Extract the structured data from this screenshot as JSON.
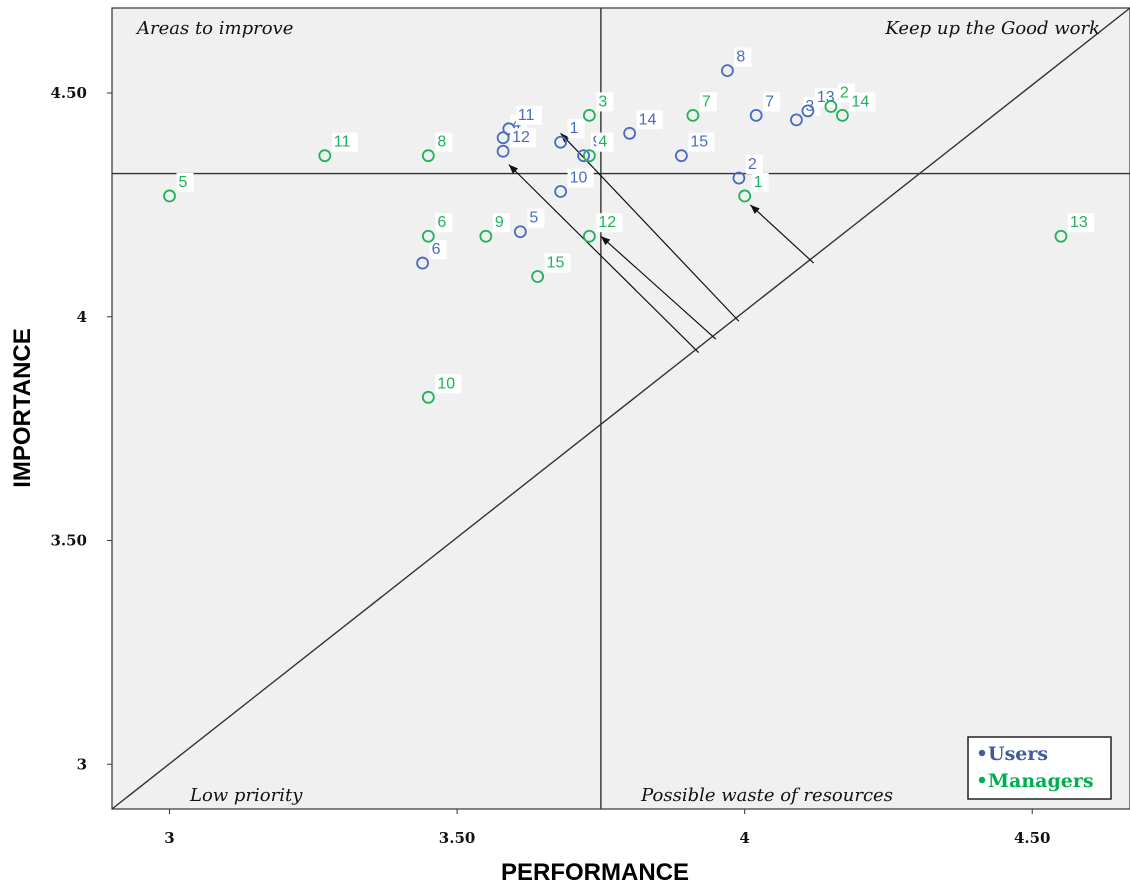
{
  "chart_data": {
    "type": "scatter",
    "title": "",
    "xlabel": "PERFORMANCE",
    "ylabel": "IMPORTANCE",
    "xlim": [
      2.9,
      4.67
    ],
    "ylim": [
      2.9,
      4.69
    ],
    "x_ticks": [
      {
        "value": 3,
        "label": "3"
      },
      {
        "value": 3.5,
        "label": "3.50"
      },
      {
        "value": 4,
        "label": "4"
      },
      {
        "value": 4.5,
        "label": "4.50"
      }
    ],
    "y_ticks": [
      {
        "value": 3,
        "label": "3"
      },
      {
        "value": 3.5,
        "label": "3.50"
      },
      {
        "value": 4,
        "label": "4"
      },
      {
        "value": 4.5,
        "label": "4.50"
      }
    ],
    "grid": false,
    "mean_lines": {
      "x": 3.75,
      "y": 4.32
    },
    "diagonal": {
      "from": [
        2.9,
        2.9
      ],
      "to": [
        4.67,
        4.69
      ]
    },
    "quadrant_labels": [
      {
        "text": "Areas to improve",
        "position": "top-left"
      },
      {
        "text": "Keep up the Good work",
        "position": "top-right"
      },
      {
        "text": "Low priority",
        "position": "bottom-left"
      },
      {
        "text": "Possible waste of resources",
        "position": "bottom-right"
      }
    ],
    "legend": {
      "position": "bottom-right",
      "entries": [
        {
          "label": "Users",
          "color": "#3f5c9c"
        },
        {
          "label": "Managers",
          "color": "#00b050"
        }
      ]
    },
    "series": [
      {
        "name": "Users",
        "color": "#4a6cc0",
        "points": [
          {
            "id": "1",
            "x": 3.68,
            "y": 4.39
          },
          {
            "id": "2",
            "x": 3.99,
            "y": 4.31
          },
          {
            "id": "3",
            "x": 4.09,
            "y": 4.44
          },
          {
            "id": "4",
            "x": 3.58,
            "y": 4.4
          },
          {
            "id": "5",
            "x": 3.61,
            "y": 4.19
          },
          {
            "id": "6",
            "x": 3.44,
            "y": 4.12
          },
          {
            "id": "7",
            "x": 4.02,
            "y": 4.45
          },
          {
            "id": "8",
            "x": 3.97,
            "y": 4.55
          },
          {
            "id": "9",
            "x": 3.72,
            "y": 4.36
          },
          {
            "id": "10",
            "x": 3.68,
            "y": 4.28
          },
          {
            "id": "11",
            "x": 3.59,
            "y": 4.42
          },
          {
            "id": "12",
            "x": 3.58,
            "y": 4.37
          },
          {
            "id": "13",
            "x": 4.11,
            "y": 4.46
          },
          {
            "id": "14",
            "x": 3.8,
            "y": 4.41
          },
          {
            "id": "15",
            "x": 3.89,
            "y": 4.36
          }
        ]
      },
      {
        "name": "Managers",
        "color": "#1fb25a",
        "points": [
          {
            "id": "1",
            "x": 4.0,
            "y": 4.27
          },
          {
            "id": "2",
            "x": 4.15,
            "y": 4.47
          },
          {
            "id": "3",
            "x": 3.73,
            "y": 4.45
          },
          {
            "id": "4",
            "x": 3.73,
            "y": 4.36
          },
          {
            "id": "5",
            "x": 3.0,
            "y": 4.27
          },
          {
            "id": "6",
            "x": 3.45,
            "y": 4.18
          },
          {
            "id": "7",
            "x": 3.91,
            "y": 4.45
          },
          {
            "id": "8",
            "x": 3.45,
            "y": 4.36
          },
          {
            "id": "9",
            "x": 3.55,
            "y": 4.18
          },
          {
            "id": "10",
            "x": 3.45,
            "y": 3.82
          },
          {
            "id": "11",
            "x": 3.27,
            "y": 4.36
          },
          {
            "id": "12",
            "x": 3.73,
            "y": 4.18
          },
          {
            "id": "13",
            "x": 4.55,
            "y": 4.18
          },
          {
            "id": "14",
            "x": 4.17,
            "y": 4.45
          },
          {
            "id": "15",
            "x": 3.64,
            "y": 4.09
          }
        ]
      }
    ],
    "arrows": [
      {
        "from": [
          4.12,
          4.12
        ],
        "to": [
          4.01,
          4.25
        ]
      },
      {
        "from": [
          3.99,
          3.99
        ],
        "to": [
          3.68,
          4.41
        ]
      },
      {
        "from": [
          3.95,
          3.95
        ],
        "to": [
          3.75,
          4.18
        ]
      },
      {
        "from": [
          3.92,
          3.92
        ],
        "to": [
          3.59,
          4.34
        ]
      }
    ]
  }
}
